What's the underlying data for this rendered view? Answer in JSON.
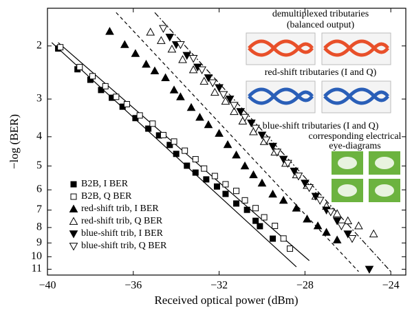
{
  "chart_data": {
    "type": "scatter",
    "xlabel": "Received optical power (dBm)",
    "ylabel": "−log (BER)",
    "xlim": [
      -40,
      -23.3
    ],
    "ylim": [
      1.5,
      11.5
    ],
    "ylog": true,
    "yinverted": true,
    "xticks": [
      {
        "value": -40,
        "label": "−40"
      },
      {
        "value": -36,
        "label": "−36"
      },
      {
        "value": -32,
        "label": "−32"
      },
      {
        "value": -28,
        "label": "−28"
      },
      {
        "value": -24,
        "label": "−24"
      }
    ],
    "yticks": [
      2,
      3,
      4,
      5,
      6,
      7,
      8,
      9,
      10,
      11
    ],
    "legend": "lower-left",
    "series": [
      {
        "name": "B2B, I BER",
        "marker": "square",
        "filled": true,
        "color": "#000000",
        "x": [
          -39.5,
          -38.6,
          -38.0,
          -37.5,
          -37.0,
          -36.5,
          -35.9,
          -35.3,
          -34.8,
          -34.3,
          -34.0,
          -33.5,
          -33.1,
          -32.6,
          -32.1,
          -31.7,
          -31.2,
          -30.7,
          -30.3,
          -30.1,
          -29.5
        ],
        "values": [
          2.04,
          2.39,
          2.59,
          2.8,
          2.97,
          3.18,
          3.47,
          3.76,
          3.96,
          4.26,
          4.56,
          4.99,
          5.26,
          5.54,
          5.85,
          6.19,
          6.66,
          6.99,
          7.6,
          7.92,
          8.71
        ]
      },
      {
        "name": "B2B, Q BER",
        "marker": "square",
        "filled": false,
        "color": "#000000",
        "x": [
          -39.4,
          -38.5,
          -37.9,
          -37.3,
          -36.8,
          -36.3,
          -35.7,
          -35.1,
          -34.6,
          -34.1,
          -33.6,
          -33.1,
          -32.7,
          -32.2,
          -31.7,
          -31.2,
          -30.8,
          -30.3,
          -29.9,
          -29.4,
          -29.0,
          -28.7
        ],
        "values": [
          2.02,
          2.35,
          2.52,
          2.72,
          2.95,
          3.12,
          3.4,
          3.62,
          3.95,
          4.15,
          4.45,
          4.75,
          5.1,
          5.4,
          5.75,
          6.05,
          6.5,
          6.9,
          7.4,
          7.9,
          8.7,
          9.4
        ]
      },
      {
        "name": "red-shift trib, I BER",
        "marker": "triangle-up",
        "filled": true,
        "color": "#000000",
        "x": [
          -37.1,
          -36.4,
          -35.9,
          -35.4,
          -35.0,
          -34.5,
          -34.1,
          -33.8,
          -33.3,
          -32.9,
          -32.5,
          -32.0,
          -31.6,
          -31.2,
          -30.8,
          -30.4,
          -30.0,
          -29.5,
          -29.0,
          -28.4,
          -27.9,
          -27.4,
          -27.0,
          -26.5
        ],
        "values": [
          1.79,
          1.98,
          2.12,
          2.3,
          2.42,
          2.55,
          2.8,
          2.95,
          3.2,
          3.45,
          3.65,
          3.9,
          4.25,
          4.6,
          5.0,
          5.35,
          5.7,
          6.2,
          6.5,
          6.9,
          7.5,
          7.9,
          8.3,
          8.8
        ]
      },
      {
        "name": "red-shift trib, Q BER",
        "marker": "triangle-up",
        "filled": false,
        "color": "#000000",
        "x": [
          -35.2,
          -34.7,
          -34.2,
          -33.7,
          -33.2,
          -32.7,
          -32.2,
          -31.7,
          -31.3,
          -30.9,
          -30.4,
          -29.9,
          -29.4,
          -28.9,
          -28.4,
          -27.9,
          -27.5,
          -27.0,
          -26.5,
          -26.0,
          -25.5,
          -24.8
        ],
        "values": [
          1.8,
          1.92,
          2.05,
          2.22,
          2.4,
          2.62,
          2.85,
          3.05,
          3.3,
          3.55,
          3.85,
          4.15,
          4.5,
          4.9,
          5.35,
          5.8,
          6.3,
          6.8,
          7.2,
          7.6,
          7.9,
          8.4
        ]
      },
      {
        "name": "blue-shift trib, I BER",
        "marker": "triangle-down",
        "filled": true,
        "color": "#000000",
        "x": [
          -34.3,
          -34.0,
          -33.5,
          -33.0,
          -32.5,
          -32.0,
          -31.5,
          -31.0,
          -30.5,
          -30.0,
          -29.5,
          -29.0,
          -28.5,
          -28.0,
          -27.5,
          -27.0,
          -26.5,
          -26.0,
          -25.0
        ],
        "values": [
          1.87,
          1.98,
          2.15,
          2.35,
          2.55,
          2.75,
          3.0,
          3.3,
          3.6,
          3.95,
          4.3,
          4.75,
          5.2,
          5.7,
          6.3,
          7.0,
          7.6,
          8.4,
          11.0
        ]
      },
      {
        "name": "blue-shift trib, Q BER",
        "marker": "triangle-down",
        "filled": false,
        "color": "#000000",
        "x": [
          -34.6,
          -33.8,
          -33.2,
          -32.8,
          -32.3,
          -31.8,
          -31.3,
          -30.8,
          -30.3,
          -29.8,
          -29.3,
          -28.8,
          -28.3,
          -27.8,
          -27.3,
          -26.8,
          -26.3,
          -25.8
        ],
        "values": [
          1.75,
          1.98,
          2.2,
          2.4,
          2.65,
          2.9,
          3.15,
          3.45,
          3.75,
          4.1,
          4.5,
          4.9,
          5.4,
          5.9,
          6.5,
          7.1,
          7.9,
          8.7
        ]
      }
    ],
    "fits": [
      {
        "dash": "solid",
        "x": [
          -39.8,
          -28.4
        ],
        "values": [
          1.95,
          10.8
        ]
      },
      {
        "dash": "solid",
        "x": [
          -39.5,
          -27.8
        ],
        "values": [
          1.95,
          10.3
        ]
      },
      {
        "dash": "dashed",
        "x": [
          -36.8,
          -25.5
        ],
        "values": [
          1.55,
          11.2
        ]
      },
      {
        "dash": "dashdot",
        "x": [
          -35.0,
          -24.0
        ],
        "values": [
          1.55,
          11.2
        ]
      }
    ],
    "annotations": [
      "demultiplexed tributaries",
      "(balanced output)",
      "red-shift tributaries (I and Q)",
      "blue-shift tributaries (I and Q)",
      "corresponding electrical",
      "eye-diagrams"
    ]
  }
}
